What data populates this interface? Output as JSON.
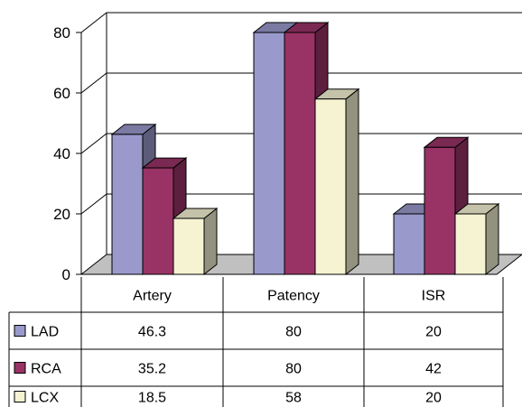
{
  "chart_data": {
    "type": "bar",
    "categories": [
      "Artery",
      "Patency",
      "ISR"
    ],
    "series": [
      {
        "name": "LAD",
        "values": [
          46.3,
          80,
          20
        ],
        "color": "#9999cc"
      },
      {
        "name": "RCA",
        "values": [
          35.2,
          80,
          42
        ],
        "color": "#993366"
      },
      {
        "name": "LCX",
        "values": [
          18.5,
          58,
          20
        ],
        "color": "#f5f3d2"
      }
    ],
    "table": [
      [
        "46.3",
        "80",
        "20"
      ],
      [
        "35.2",
        "80",
        "42"
      ],
      [
        "18.5",
        "58",
        "20"
      ]
    ],
    "ylim": [
      0,
      80
    ],
    "yticks": [
      "0",
      "20",
      "40",
      "60",
      "80"
    ],
    "grid": true,
    "style": "3d-clustered-bar",
    "legend": "data-table-left"
  }
}
